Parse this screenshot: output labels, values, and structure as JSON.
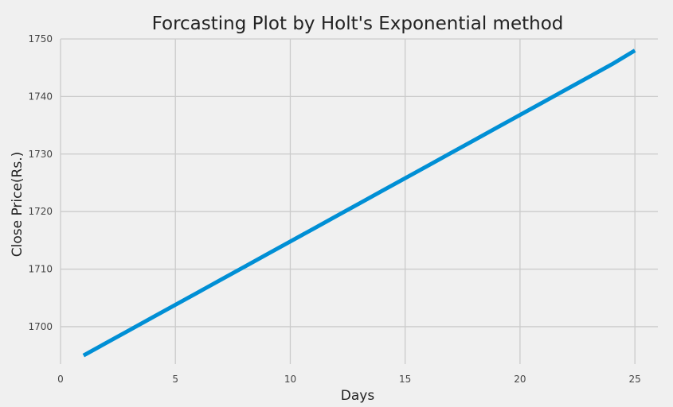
{
  "chart_data": {
    "type": "line",
    "title": "Forcasting Plot by Holt's Exponential method",
    "xlabel": "Days",
    "ylabel": "Close Price(Rs.)",
    "xlim": [
      0,
      26
    ],
    "ylim": [
      1693.5,
      1750
    ],
    "x_ticks": [
      0,
      5,
      10,
      15,
      20,
      25
    ],
    "y_ticks": [
      1700,
      1710,
      1720,
      1730,
      1740,
      1750
    ],
    "grid": true,
    "series": [
      {
        "color": "#008fd5",
        "x": [
          1,
          2,
          3,
          4,
          5,
          6,
          7,
          8,
          9,
          10,
          11,
          12,
          13,
          14,
          15,
          16,
          17,
          18,
          19,
          20,
          21,
          22,
          23,
          24,
          25
        ],
        "y": [
          1695.0,
          1697.2,
          1699.4,
          1701.6,
          1703.8,
          1706.0,
          1708.2,
          1710.4,
          1712.6,
          1714.8,
          1717.0,
          1719.2,
          1721.4,
          1723.6,
          1725.8,
          1728.0,
          1730.2,
          1732.4,
          1734.6,
          1736.8,
          1739.0,
          1741.2,
          1743.4,
          1745.6,
          1748.0
        ]
      }
    ]
  },
  "style": {
    "background": "#f0f0f0",
    "grid_color": "#cbcbcb",
    "line_color": "#008fd5"
  }
}
